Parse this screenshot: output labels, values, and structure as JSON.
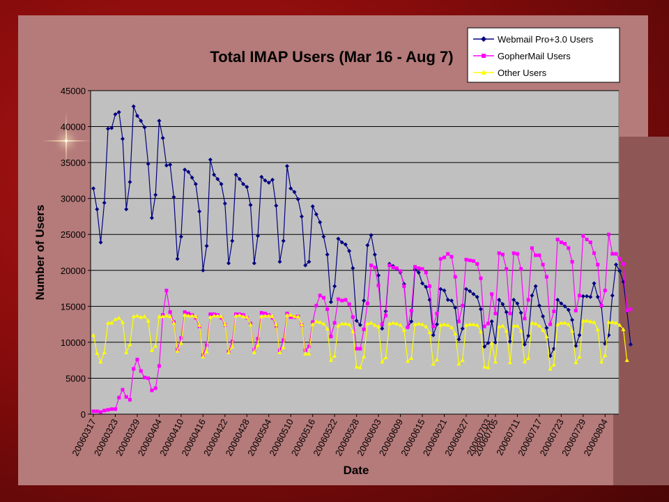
{
  "chart_data": {
    "type": "line",
    "title": "Total IMAP Users (Mar 16 - Aug 7)",
    "xlabel": "Date",
    "ylabel": "Number of Users",
    "ylim": [
      0,
      45000
    ],
    "yticks": [
      0,
      5000,
      10000,
      15000,
      20000,
      25000,
      30000,
      35000,
      40000,
      45000
    ],
    "grid": "horizontal",
    "legend_position": "top-right",
    "x_start": "2006-03-16",
    "x_end": "2006-08-07",
    "x_tick_labels": [
      "20060317",
      "20060323",
      "20060329",
      "20060404",
      "20060410",
      "20060416",
      "20060422",
      "20060428",
      "20060504",
      "20060510",
      "20060516",
      "20060522",
      "20060528",
      "20060603",
      "20060609",
      "20060615",
      "20060621",
      "20060627",
      "20060703",
      "20060705",
      "20060711",
      "20060717",
      "20060723",
      "20060729",
      "20060804"
    ],
    "series": [
      {
        "name": "Webmail Pro+3.0 Users",
        "color": "#000080",
        "marker": "diamond",
        "values": [
          31400,
          28500,
          23900,
          29400,
          39700,
          39800,
          41700,
          42000,
          38300,
          28500,
          32300,
          42800,
          41500,
          40800,
          39900,
          34800,
          27300,
          30500,
          40800,
          38400,
          34600,
          34700,
          30200,
          21600,
          24700,
          34000,
          33700,
          32900,
          32000,
          28200,
          20000,
          23400,
          35400,
          33300,
          32700,
          32000,
          29300,
          21000,
          24100,
          33300,
          32700,
          32000,
          31600,
          29100,
          21000,
          24800,
          33000,
          32500,
          32200,
          32600,
          29000,
          21200,
          24100,
          34500,
          31400,
          30900,
          29900,
          27500,
          20700,
          21200,
          28900,
          27800,
          26700,
          24700,
          22200,
          15600,
          17800,
          24400,
          23900,
          23600,
          22700,
          20300,
          13000,
          12400,
          15800,
          23500,
          24900,
          22200,
          19300,
          11900,
          14300,
          20900,
          20600,
          20200,
          19700,
          18100,
          12100,
          12900,
          20100,
          19700,
          18200,
          17700,
          15900,
          11000,
          12500,
          17400,
          17200,
          15900,
          15800,
          14800,
          10400,
          11900,
          17400,
          17100,
          16700,
          16300,
          14600,
          9400,
          9900,
          12900,
          10000,
          15900,
          15300,
          14200,
          10100,
          15900,
          15400,
          14100,
          9700,
          10900,
          16500,
          17800,
          15100,
          13600,
          12000,
          8100,
          9100,
          15900,
          15400,
          15000,
          14500,
          13100,
          9500,
          11000,
          16400,
          16400,
          16300,
          18200,
          16300,
          15000,
          9800,
          11000,
          16500,
          20800,
          19900,
          18400,
          14300,
          9700
        ]
      },
      {
        "name": "GopherMail Users",
        "color": "#ff00ff",
        "marker": "square",
        "values": [
          400,
          400,
          300,
          500,
          600,
          700,
          700,
          2300,
          3400,
          2400,
          2000,
          6300,
          7600,
          6000,
          5100,
          5000,
          3300,
          3600,
          6700,
          13800,
          17200,
          14200,
          12800,
          9000,
          10600,
          14200,
          14000,
          13800,
          13400,
          12200,
          8200,
          9600,
          13900,
          13900,
          13800,
          13400,
          12400,
          8700,
          10100,
          13900,
          13900,
          13800,
          13400,
          12600,
          9000,
          10500,
          14100,
          14000,
          13800,
          13400,
          12300,
          8900,
          10300,
          14000,
          13500,
          13500,
          13600,
          12400,
          8900,
          9400,
          12800,
          15100,
          16500,
          16200,
          14600,
          10800,
          12700,
          16000,
          15800,
          15900,
          15300,
          13500,
          9100,
          9100,
          11800,
          15400,
          20700,
          20400,
          17900,
          12500,
          13700,
          20700,
          20400,
          20300,
          19900,
          17800,
          12100,
          14400,
          20500,
          20300,
          20200,
          19700,
          17800,
          12200,
          14000,
          21600,
          21800,
          22300,
          21900,
          19100,
          12900,
          15100,
          21500,
          21400,
          21300,
          20900,
          18900,
          12200,
          12600,
          16700,
          14000,
          22400,
          22200,
          20200,
          14000,
          22400,
          22300,
          20200,
          13300,
          15900,
          23100,
          22100,
          22100,
          20800,
          19100,
          12500,
          14300,
          24300,
          23900,
          23700,
          23100,
          21200,
          14400,
          16500,
          24800,
          24300,
          23900,
          22400,
          20800,
          15100,
          17200,
          25000,
          22300,
          22300,
          21600,
          20900,
          14400,
          14600
        ]
      },
      {
        "name": "Other Users",
        "color": "#ffff00",
        "marker": "triangle",
        "values": [
          11000,
          8500,
          7300,
          8600,
          12700,
          12700,
          13200,
          13400,
          12800,
          8600,
          9700,
          13600,
          13700,
          13500,
          13600,
          13000,
          8900,
          9500,
          13600,
          13600,
          13700,
          13600,
          12700,
          8800,
          9900,
          13800,
          13700,
          13700,
          13600,
          12400,
          8000,
          8700,
          13500,
          13700,
          13700,
          13600,
          12500,
          8600,
          9400,
          13700,
          13800,
          13600,
          13500,
          12500,
          8600,
          9600,
          13600,
          13700,
          13700,
          13600,
          12500,
          8600,
          9300,
          13800,
          13800,
          13600,
          13600,
          12500,
          8400,
          8400,
          12500,
          12900,
          12800,
          12600,
          11900,
          7500,
          8100,
          12300,
          12600,
          12600,
          12500,
          11500,
          6600,
          6500,
          8000,
          12600,
          12700,
          12400,
          12200,
          7300,
          7900,
          12600,
          12700,
          12600,
          12400,
          11700,
          7400,
          7800,
          12500,
          12600,
          12500,
          12200,
          11400,
          7000,
          7600,
          12400,
          12500,
          12400,
          12100,
          11200,
          7000,
          7500,
          12400,
          12500,
          12500,
          12400,
          11500,
          6600,
          6500,
          9900,
          7300,
          12200,
          12300,
          11600,
          7200,
          12300,
          12300,
          11600,
          7300,
          7800,
          12700,
          12600,
          12300,
          11700,
          10800,
          6300,
          6900,
          12500,
          12700,
          12700,
          12500,
          11600,
          7200,
          8000,
          13000,
          13000,
          12900,
          12800,
          11800,
          7300,
          8200,
          12800,
          12800,
          12700,
          12400,
          11800,
          7500
        ]
      }
    ]
  }
}
